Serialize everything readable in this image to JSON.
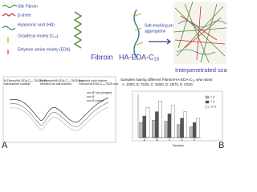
{
  "legend_items": [
    "Silk Fibroin",
    "β-sheet",
    "Hyaluronic acid (HA)",
    "Octadecyl moiety (C₁₈)",
    "Ethylene amine moiety (EDA)"
  ],
  "labels": {
    "fibroin": "Fibroin",
    "conjugate": "HA-EDA-C₁₈",
    "process": [
      "Salt leaching procedure",
      "aggregation"
    ],
    "scaffold": "Interpenetrated scaffold"
  },
  "panel_a": {
    "label": "A",
    "legend": [
      "B* (no pongee)",
      "B",
      "B control"
    ],
    "captions": [
      [
        "B-Fibroin/HA-EDA-C₁₈ 75/25 w/w",
        "salt leached scaffold"
      ],
      [
        "B* Fibroin/HA-EDA-C₁₈ 75/25 w/w",
        "blended not salt leached"
      ],
      [
        "B control solid mixture",
        "Fibroin/HA-EDA-C₁₈ 75/25 w/w"
      ]
    ]
  },
  "panel_b": {
    "label": "B",
    "title": "Samples having different Fibroin/HA-EDA-C₁₈ w/w ratios",
    "ratios": "A: 100/0, B: 75/25, C: 50/50, D: 25/75, E: 0/100.",
    "x_label": "Samples",
    "categories": [
      "A",
      "B",
      "C",
      "D",
      "E"
    ],
    "series": [
      {
        "name": "1 d",
        "color": "#bbbbbb",
        "values": [
          0.35,
          0.4,
          0.38,
          0.3,
          0.25
        ]
      },
      {
        "name": "7 d",
        "color": "#555555",
        "values": [
          0.5,
          0.6,
          0.55,
          0.45,
          0.35
        ]
      },
      {
        "name": "14 d",
        "color": "#ffffff",
        "values": [
          0.7,
          0.85,
          0.75,
          0.6,
          0.45
        ]
      }
    ],
    "ylim": [
      0,
      1
    ]
  }
}
